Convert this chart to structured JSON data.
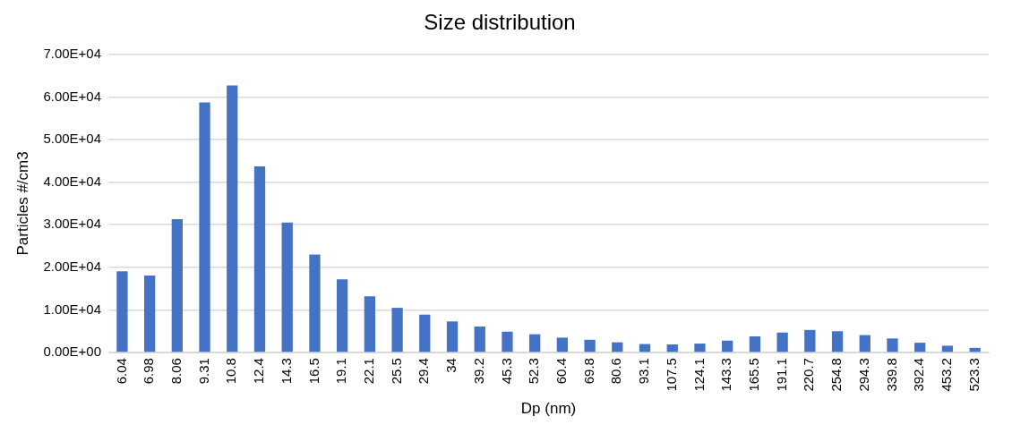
{
  "chart_data": {
    "type": "bar",
    "title": "Size distribution",
    "xlabel": "Dp (nm)",
    "ylabel": "Particles #/cm3",
    "categories": [
      "6.04",
      "6.98",
      "8.06",
      "9.31",
      "10.8",
      "12.4",
      "14.3",
      "16.5",
      "19.1",
      "22.1",
      "25.5",
      "29.4",
      "34",
      "39.2",
      "45.3",
      "52.3",
      "60.4",
      "69.8",
      "80.6",
      "93.1",
      "107.5",
      "124.1",
      "143.3",
      "165.5",
      "191.1",
      "220.7",
      "254.8",
      "294.3",
      "339.8",
      "392.4",
      "453.2",
      "523.3"
    ],
    "values": [
      19100,
      18100,
      31300,
      58700,
      62700,
      43700,
      30500,
      23000,
      17200,
      13200,
      10500,
      8900,
      7300,
      6100,
      4900,
      4300,
      3500,
      3000,
      2400,
      2000,
      1900,
      2100,
      2800,
      3800,
      4700,
      5300,
      5000,
      4100,
      3300,
      2300,
      1600,
      1100
    ],
    "color": "#4472c4",
    "ylim": [
      0,
      70000
    ],
    "yticks": [
      {
        "value": 0,
        "label": "0.00E+00"
      },
      {
        "value": 10000,
        "label": "1.00E+04"
      },
      {
        "value": 20000,
        "label": "2.00E+04"
      },
      {
        "value": 30000,
        "label": "3.00E+04"
      },
      {
        "value": 40000,
        "label": "4.00E+04"
      },
      {
        "value": 50000,
        "label": "5.00E+04"
      },
      {
        "value": 60000,
        "label": "6.00E+04"
      },
      {
        "value": 70000,
        "label": "7.00E+04"
      }
    ],
    "grid": "y",
    "legend": false
  }
}
